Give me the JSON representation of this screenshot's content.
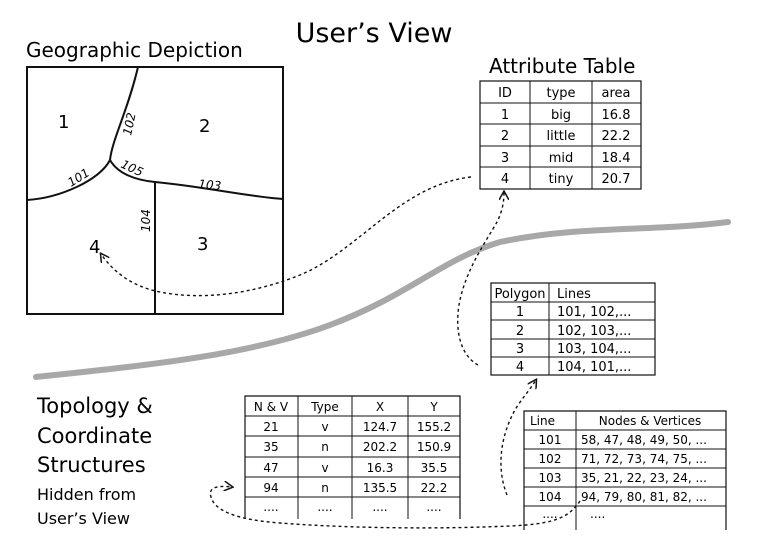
{
  "title": "User’s View",
  "map": {
    "caption": "Geographic Depiction",
    "polygons": [
      "1",
      "2",
      "3",
      "4"
    ],
    "lines": [
      "101",
      "102",
      "103",
      "104",
      "105"
    ]
  },
  "attribute_table": {
    "caption": "Attribute Table",
    "headers": [
      "ID",
      "type",
      "area"
    ],
    "rows": [
      [
        "1",
        "big",
        "16.8"
      ],
      [
        "2",
        "little",
        "22.2"
      ],
      [
        "3",
        "mid",
        "18.4"
      ],
      [
        "4",
        "tiny",
        "20.7"
      ]
    ]
  },
  "polygon_table": {
    "headers": [
      "Polygon",
      "Lines"
    ],
    "rows": [
      [
        "1",
        "101, 102,..."
      ],
      [
        "2",
        "102, 103,..."
      ],
      [
        "3",
        "103, 104,..."
      ],
      [
        "4",
        "104, 101,..."
      ]
    ]
  },
  "line_table": {
    "headers": [
      "Line",
      "Nodes & Vertices"
    ],
    "rows": [
      [
        "101",
        "58, 47, 48, 49, 50, ..."
      ],
      [
        "102",
        "71, 72, 73, 74, 75, ..."
      ],
      [
        "103",
        "35, 21, 22, 23, 24, ..."
      ],
      [
        "104",
        "94, 79, 80, 81, 82, ..."
      ],
      [
        "....",
        "...."
      ]
    ]
  },
  "node_table": {
    "headers": [
      "N & V",
      "Type",
      "X",
      "Y"
    ],
    "rows": [
      [
        "21",
        "v",
        "124.7",
        "155.2"
      ],
      [
        "35",
        "n",
        "202.2",
        "150.9"
      ],
      [
        "47",
        "v",
        "16.3",
        "35.5"
      ],
      [
        "94",
        "n",
        "135.5",
        "22.2"
      ],
      [
        "....",
        "....",
        "....",
        "...."
      ]
    ]
  },
  "hidden_label": {
    "lines": [
      "Topology &",
      "Coordinate",
      "Structures",
      "Hidden from",
      "User’s View"
    ]
  },
  "colors": {
    "divider": "#a8a8a8",
    "ink": "#111111"
  }
}
